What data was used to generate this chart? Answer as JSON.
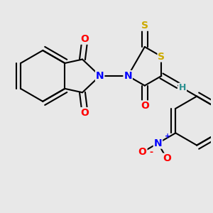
{
  "background_color": "#e8e8e8",
  "atom_colors": {
    "C": "#000000",
    "N": "#0000ff",
    "O": "#ff0000",
    "S": "#ccaa00",
    "H": "#2a9090"
  },
  "bond_color": "#000000",
  "bond_width": 1.5,
  "dbo": 0.055,
  "font_size_atoms": 10,
  "font_size_h": 9
}
